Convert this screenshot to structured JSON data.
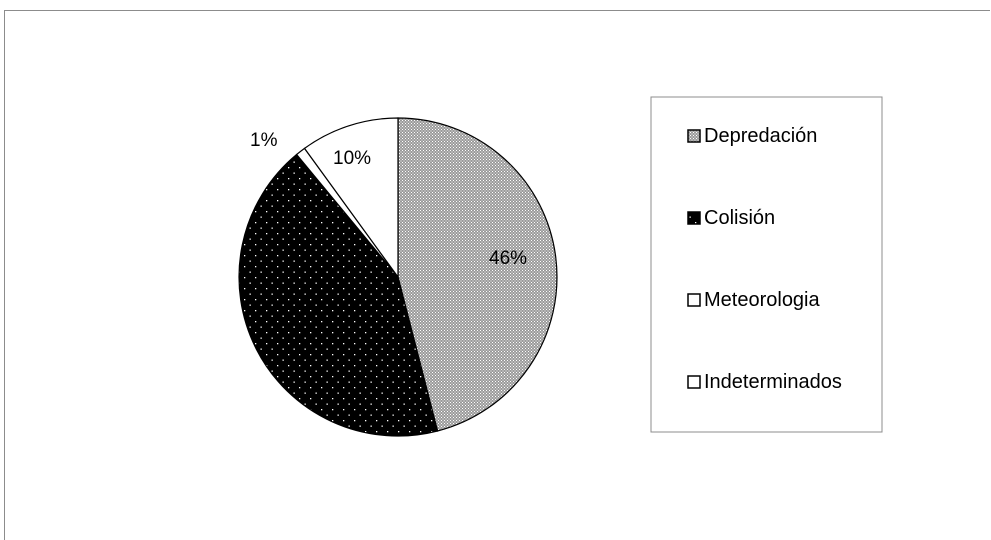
{
  "chart_data": {
    "type": "pie",
    "title": "",
    "legend_position": "right",
    "slices": [
      {
        "label": "Depredación",
        "value": 46,
        "data_label": "46%",
        "pattern": "crosshatch"
      },
      {
        "label": "Colisión",
        "value": 43,
        "data_label": "",
        "pattern": "dots-on-black"
      },
      {
        "label": "Meteorologia",
        "value": 1,
        "data_label": "1%",
        "pattern": "white"
      },
      {
        "label": "Indeterminados",
        "value": 10,
        "data_label": "10%",
        "pattern": "white"
      }
    ]
  }
}
